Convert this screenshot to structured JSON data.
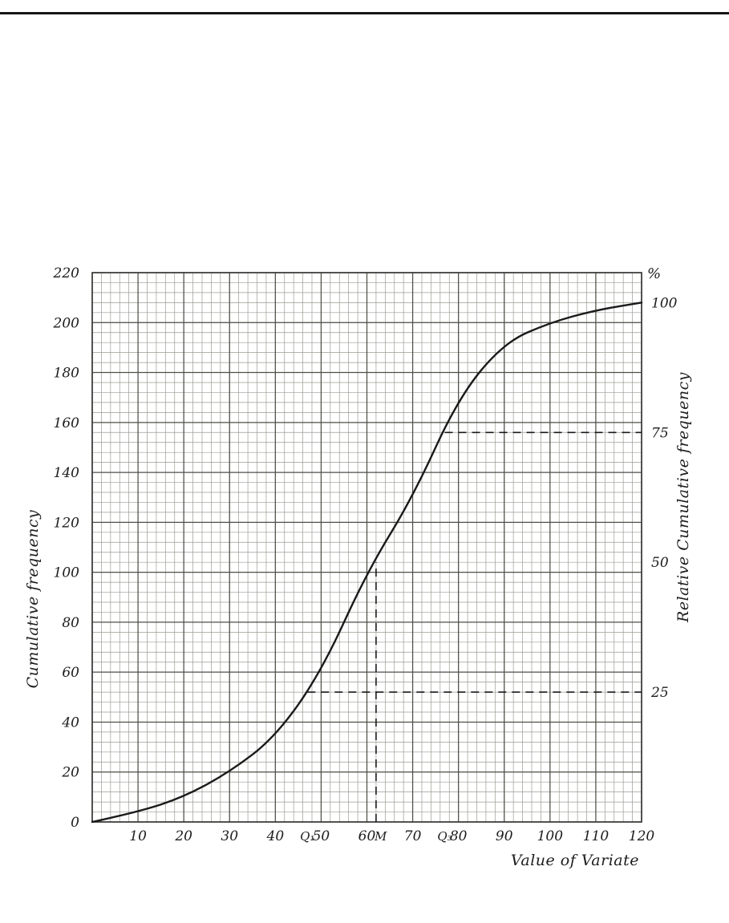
{
  "page": {
    "kind": "hand-drawn cumulative frequency curve on graph paper",
    "top_rule": true
  },
  "chart_data": {
    "type": "line",
    "title": "",
    "xlabel": "Value of Variate",
    "ylabel_left": "Cumulative frequency",
    "ylabel_right": "Relative Cumulative frequency",
    "right_axis_unit": "%",
    "x": [
      0,
      10,
      20,
      30,
      40,
      50,
      60,
      70,
      80,
      90,
      100,
      110,
      120
    ],
    "series": [
      {
        "name": "cumulative-frequency-ogive",
        "values": [
          0,
          4,
          10,
          20,
          34,
          60,
          100,
          130,
          170,
          192,
          200,
          205,
          208
        ]
      }
    ],
    "xlim": [
      0,
      120
    ],
    "ylim_left": [
      0,
      220
    ],
    "total_frequency": 208,
    "x_ticks": [
      10,
      20,
      30,
      40,
      50,
      60,
      70,
      80,
      90,
      100,
      110,
      120
    ],
    "x_tick_labels": [
      "10",
      "20",
      "30",
      "40",
      "50",
      "60",
      "70",
      "80",
      "90",
      "100",
      "110",
      "120"
    ],
    "y_ticks_left": [
      0,
      20,
      40,
      60,
      80,
      100,
      120,
      140,
      160,
      180,
      200,
      220
    ],
    "y_tick_labels_left": [
      "0",
      "20",
      "40",
      "60",
      "80",
      "100",
      "120",
      "140",
      "160",
      "180",
      "200",
      "220"
    ],
    "right_ticks": [
      {
        "percent": 100,
        "label": "100"
      },
      {
        "percent": 75,
        "label": "75"
      },
      {
        "percent": 50,
        "label": "50"
      },
      {
        "percent": 25,
        "label": "25"
      }
    ],
    "extra_x_labels": [
      {
        "x": 47,
        "label": "Q₁"
      },
      {
        "x": 63,
        "label": "M"
      },
      {
        "x": 77,
        "label": "Q₃"
      }
    ],
    "dashed_lines": [
      {
        "kind": "vertical",
        "name": "median-dashed-line",
        "x": 62,
        "to_cumulative": 104
      },
      {
        "kind": "horizontal",
        "name": "q1-dashed-line",
        "cumulative": 52,
        "from_x": 47,
        "percent": 25
      },
      {
        "kind": "horizontal",
        "name": "q3-dashed-line",
        "cumulative": 156,
        "from_x": 77,
        "percent": 75
      }
    ],
    "grid": {
      "on": true,
      "minor_x": 2,
      "minor_y": 4,
      "major_x": 10,
      "major_y": 20
    },
    "legend": "none",
    "colors": {
      "ink": "#1a1a1a",
      "grid_minor": "#9b9b94",
      "grid_major": "#4f4f48",
      "border": "#333330",
      "text": "#1d1d1d"
    }
  }
}
